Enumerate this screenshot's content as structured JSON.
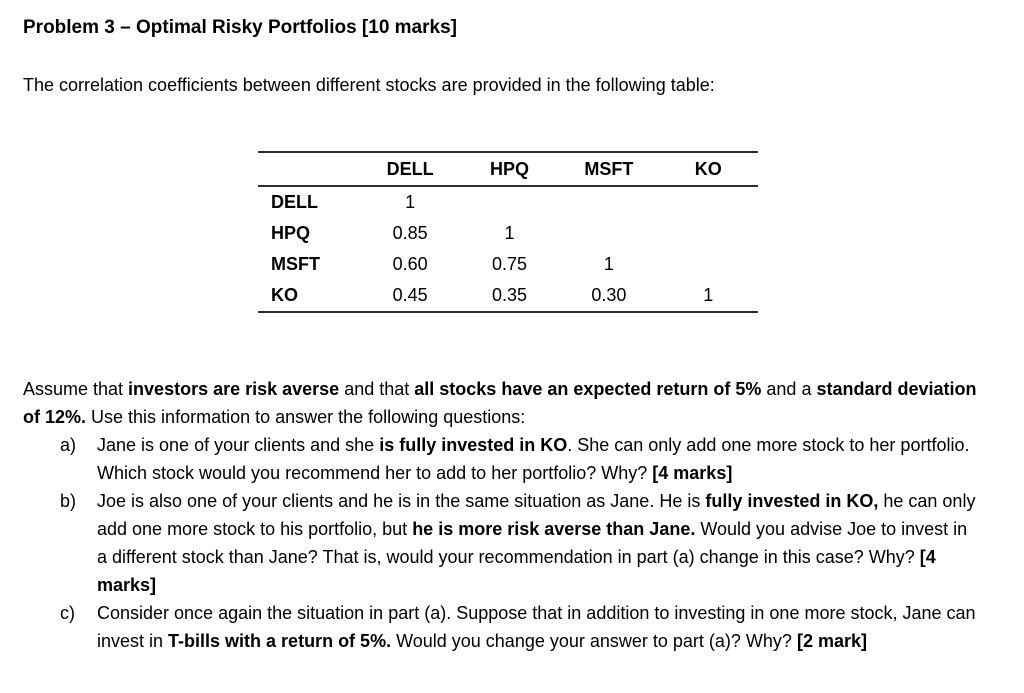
{
  "colors": {
    "background": "#ffffff",
    "text": "#000000",
    "table_border": "#2e2e2e"
  },
  "document": {
    "title": "Problem 3 – Optimal Risky Portfolios [10 marks]",
    "intro": "The correlation coefficients between different stocks are provided in the following table:",
    "assumption_rich": [
      {
        "t": "Assume that ",
        "b": false
      },
      {
        "t": "investors are risk averse",
        "b": true
      },
      {
        "t": " and that ",
        "b": false
      },
      {
        "t": "all stocks have an expected return of 5%",
        "b": true
      },
      {
        "t": " and a ",
        "b": false
      },
      {
        "t": "standard deviation of 12%.",
        "b": true
      },
      {
        "t": " Use this information to answer the following questions:",
        "b": false
      }
    ],
    "questions": [
      {
        "marker": "a)",
        "rich": [
          {
            "t": "Jane is one of your clients and she ",
            "b": false
          },
          {
            "t": "is fully invested in KO",
            "b": true
          },
          {
            "t": ". She can only add one more stock to her portfolio. Which stock would you recommend her to add to her portfolio? Why? ",
            "b": false
          },
          {
            "t": "[4 marks]",
            "b": true
          }
        ]
      },
      {
        "marker": "b)",
        "rich": [
          {
            "t": "Joe is also one of your clients and he is in the same situation as Jane. He is ",
            "b": false
          },
          {
            "t": "fully invested in KO,",
            "b": true
          },
          {
            "t": " he can only add one more stock to his portfolio, but ",
            "b": false
          },
          {
            "t": "he is more risk averse than Jane.",
            "b": true
          },
          {
            "t": " Would you advise Joe to invest in a different stock than Jane? That is, would your recommendation in part (a) change in this case? Why? ",
            "b": false
          },
          {
            "t": "[4 marks]",
            "b": true
          }
        ]
      },
      {
        "marker": "c)",
        "rich": [
          {
            "t": "Consider once again the situation in part (a). Suppose that in addition to investing in one more stock, Jane can invest in ",
            "b": false
          },
          {
            "t": "T-bills with a return of 5%.",
            "b": true
          },
          {
            "t": " Would you change your answer to part (a)? Why? ",
            "b": false
          },
          {
            "t": "[2 mark]",
            "b": true
          }
        ]
      }
    ]
  },
  "table": {
    "headers": [
      "",
      "DELL",
      "HPQ",
      "MSFT",
      "KO"
    ],
    "rows": [
      {
        "label": "DELL",
        "values": [
          "1",
          "",
          "",
          ""
        ]
      },
      {
        "label": "HPQ",
        "values": [
          "0.85",
          "1",
          "",
          ""
        ]
      },
      {
        "label": "MSFT",
        "values": [
          "0.60",
          "0.75",
          "1",
          ""
        ]
      },
      {
        "label": "KO",
        "values": [
          "0.45",
          "0.35",
          "0.30",
          "1"
        ]
      }
    ]
  }
}
